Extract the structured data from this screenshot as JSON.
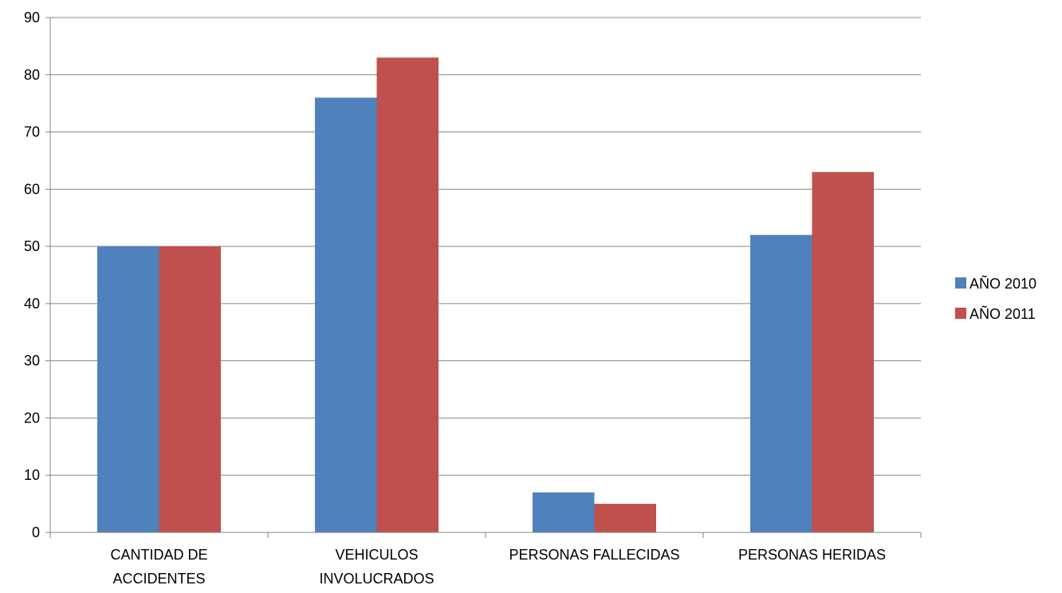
{
  "chart_data": {
    "type": "bar",
    "categories": [
      [
        "CANTIDAD DE",
        "ACCIDENTES"
      ],
      [
        "VEHICULOS",
        "INVOLUCRADOS"
      ],
      [
        "PERSONAS FALLECIDAS"
      ],
      [
        "PERSONAS HERIDAS"
      ]
    ],
    "series": [
      {
        "name": "AÑO 2010",
        "color": "#4F81BD",
        "values": [
          50,
          76,
          7,
          52
        ]
      },
      {
        "name": "AÑO 2011",
        "color": "#C0504D",
        "values": [
          50,
          83,
          5,
          63
        ]
      }
    ],
    "ylim": [
      0,
      90
    ],
    "yticks": [
      0,
      10,
      20,
      30,
      40,
      50,
      60,
      70,
      80,
      90
    ],
    "grid": true,
    "legend_position": "right"
  }
}
